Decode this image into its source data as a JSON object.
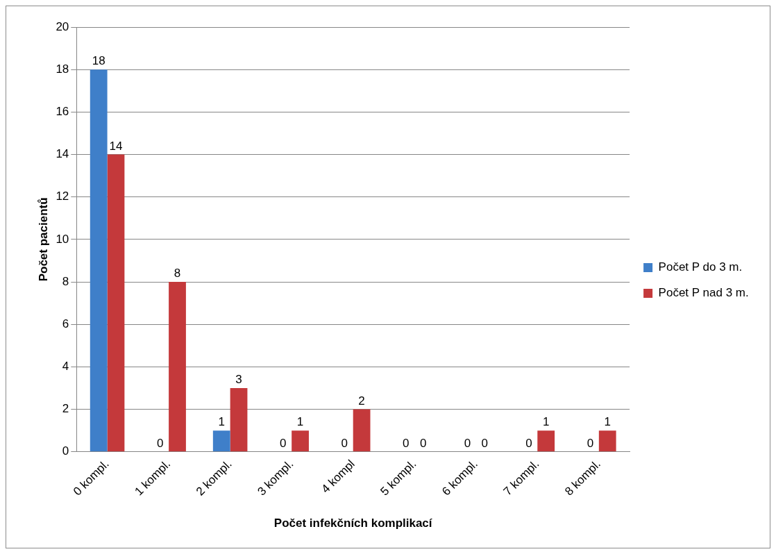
{
  "chart_data": {
    "type": "bar",
    "xlabel": "Počet infekčních komplikací",
    "ylabel": "Počet pacientů",
    "categories": [
      "0 kompl.",
      "1 kompl.",
      "2 kompl.",
      "3 kompl.",
      "4 kompl",
      "5 kompl.",
      "6 kompl.",
      "7 kompl.",
      "8 kompl."
    ],
    "series": [
      {
        "name": "Počet P do 3 m.",
        "color": "#3f7fc9",
        "values": [
          18,
          0,
          1,
          0,
          0,
          0,
          0,
          0,
          0
        ]
      },
      {
        "name": "Počet P nad 3 m.",
        "color": "#c4393b",
        "values": [
          14,
          8,
          3,
          1,
          2,
          0,
          0,
          1,
          1
        ]
      }
    ],
    "ylim": [
      0,
      20
    ],
    "yticks": [
      0,
      2,
      4,
      6,
      8,
      10,
      12,
      14,
      16,
      18,
      20
    ],
    "grid": "y",
    "legend": "right",
    "data_labels": true
  }
}
